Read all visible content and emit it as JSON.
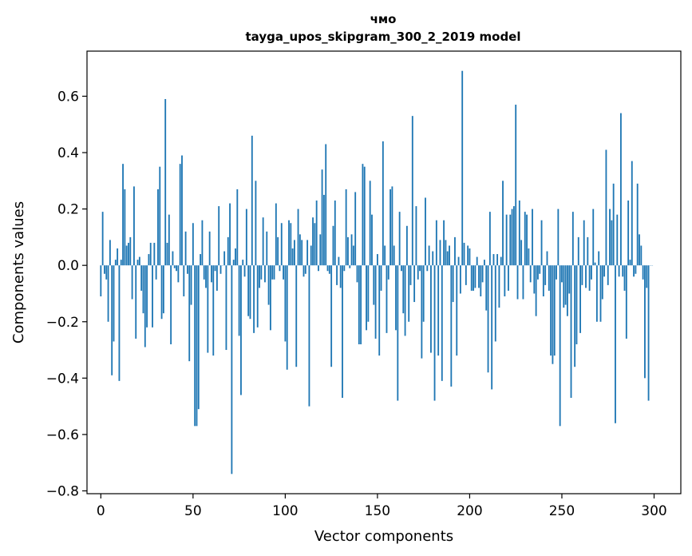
{
  "chart_data": {
    "type": "bar",
    "title": "чмо",
    "subtitle": "tayga_upos_skipgram_300_2_2019 model",
    "xlabel": "Vector components",
    "ylabel": "Components values",
    "xlim": [
      -7.5,
      314.5
    ],
    "ylim": [
      -0.81,
      0.76
    ],
    "xticks": [
      0,
      50,
      100,
      150,
      200,
      250,
      300
    ],
    "yticks": [
      -0.8,
      -0.6,
      -0.4,
      -0.2,
      0.0,
      0.2,
      0.4,
      0.6
    ],
    "ytick_labels": [
      "−0.8",
      "−0.6",
      "−0.4",
      "−0.2",
      "0.0",
      "0.2",
      "0.4",
      "0.6"
    ],
    "bar_color": "#1f77b4",
    "values": [
      -0.11,
      0.19,
      -0.03,
      -0.05,
      -0.2,
      0.09,
      -0.39,
      -0.27,
      0.02,
      0.06,
      -0.41,
      0.02,
      0.36,
      0.27,
      0.07,
      0.08,
      0.1,
      -0.12,
      0.28,
      -0.26,
      0.02,
      0.03,
      -0.09,
      -0.17,
      -0.29,
      -0.22,
      0.04,
      0.08,
      -0.22,
      0.08,
      -0.05,
      0.27,
      0.35,
      -0.19,
      -0.17,
      0.59,
      0.08,
      0.18,
      -0.28,
      0.05,
      -0.01,
      -0.02,
      -0.06,
      0.36,
      0.39,
      -0.11,
      0.12,
      -0.03,
      -0.34,
      -0.14,
      0.15,
      -0.57,
      -0.57,
      -0.51,
      0.04,
      0.16,
      -0.05,
      -0.08,
      -0.31,
      0.12,
      -0.06,
      -0.32,
      -0.02,
      -0.09,
      0.21,
      -0.03,
      0.0,
      0.05,
      -0.3,
      0.1,
      0.22,
      -0.74,
      0.02,
      0.06,
      0.27,
      -0.25,
      -0.46,
      0.02,
      -0.04,
      0.2,
      -0.18,
      -0.19,
      0.46,
      -0.24,
      0.3,
      -0.22,
      -0.08,
      -0.05,
      0.17,
      -0.06,
      0.12,
      -0.14,
      -0.23,
      -0.05,
      -0.05,
      0.22,
      0.1,
      -0.02,
      0.15,
      -0.05,
      -0.27,
      -0.37,
      0.16,
      0.15,
      0.06,
      0.09,
      -0.36,
      0.2,
      0.11,
      0.09,
      -0.04,
      -0.03,
      0.09,
      -0.5,
      0.07,
      0.17,
      0.15,
      0.23,
      -0.02,
      0.11,
      0.34,
      0.25,
      0.43,
      -0.02,
      -0.03,
      -0.36,
      0.14,
      0.23,
      -0.07,
      0.03,
      -0.08,
      -0.47,
      -0.02,
      0.27,
      0.1,
      -0.01,
      0.11,
      0.07,
      0.26,
      -0.06,
      -0.28,
      -0.28,
      0.36,
      0.35,
      -0.23,
      -0.2,
      0.3,
      0.18,
      -0.14,
      -0.26,
      0.04,
      -0.32,
      -0.09,
      0.44,
      0.07,
      -0.24,
      -0.05,
      0.27,
      0.28,
      0.07,
      -0.23,
      -0.48,
      0.19,
      -0.02,
      -0.17,
      -0.25,
      0.14,
      -0.2,
      -0.07,
      0.53,
      -0.13,
      0.21,
      -0.05,
      -0.02,
      -0.33,
      -0.2,
      0.24,
      -0.02,
      0.07,
      -0.31,
      0.05,
      -0.48,
      0.16,
      -0.32,
      0.09,
      -0.41,
      0.16,
      0.09,
      0.05,
      0.07,
      -0.43,
      -0.13,
      0.1,
      -0.32,
      0.03,
      -0.1,
      0.69,
      0.08,
      -0.07,
      0.07,
      0.06,
      -0.09,
      -0.09,
      -0.08,
      0.03,
      -0.08,
      -0.11,
      -0.06,
      0.02,
      -0.16,
      -0.38,
      0.19,
      -0.44,
      0.04,
      -0.27,
      0.04,
      -0.15,
      0.03,
      0.3,
      -0.11,
      0.18,
      -0.09,
      0.18,
      0.2,
      0.21,
      0.57,
      -0.12,
      0.23,
      0.09,
      -0.12,
      0.19,
      0.18,
      0.06,
      -0.06,
      0.2,
      -0.1,
      -0.18,
      -0.05,
      -0.03,
      0.16,
      -0.11,
      -0.07,
      0.05,
      -0.09,
      -0.32,
      -0.35,
      -0.32,
      -0.05,
      0.2,
      -0.57,
      -0.06,
      -0.15,
      -0.14,
      -0.18,
      -0.1,
      -0.47,
      0.19,
      -0.36,
      -0.28,
      0.1,
      -0.24,
      -0.07,
      0.16,
      -0.08,
      0.1,
      -0.09,
      -0.05,
      0.2,
      0.01,
      -0.2,
      0.05,
      -0.2,
      -0.12,
      -0.04,
      0.41,
      -0.07,
      0.2,
      0.16,
      0.29,
      -0.56,
      0.18,
      -0.04,
      0.54,
      -0.04,
      -0.09,
      -0.26,
      0.23,
      0.02,
      0.37,
      -0.04,
      -0.03,
      0.29,
      0.11,
      0.07,
      -0.05,
      -0.4,
      -0.08,
      -0.48,
      0.0,
      0.0
    ]
  }
}
